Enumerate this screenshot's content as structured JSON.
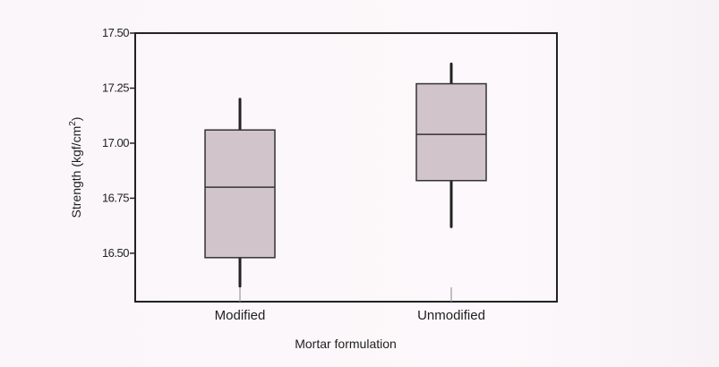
{
  "chart_data": {
    "type": "box",
    "title": "",
    "xlabel": "Mortar formulation",
    "ylabel_main": "Strength (kgf/cm",
    "ylabel_sup": "2",
    "ylabel_end": ")",
    "ylim": [
      16.28,
      17.5
    ],
    "yticks": [
      {
        "value": 16.5,
        "label": "16.50"
      },
      {
        "value": 16.75,
        "label": "16.75"
      },
      {
        "value": 17.0,
        "label": "17.00"
      },
      {
        "value": 17.25,
        "label": "17.25"
      },
      {
        "value": 17.5,
        "label": "17.50"
      }
    ],
    "categories": [
      "Modified",
      "Unmodified"
    ],
    "boxes": [
      {
        "category": "Modified",
        "whisker_low": 16.35,
        "q1": 16.48,
        "median": 16.8,
        "q3": 17.06,
        "whisker_high": 17.2
      },
      {
        "category": "Unmodified",
        "whisker_low": 16.62,
        "q1": 16.83,
        "median": 17.04,
        "q3": 17.27,
        "whisker_high": 17.36
      }
    ],
    "grid": false,
    "legend": "none",
    "box_fill": "#d2c4cb",
    "box_stroke": "#333333",
    "axis_color": "#222222",
    "whisker_color": "#222222"
  }
}
